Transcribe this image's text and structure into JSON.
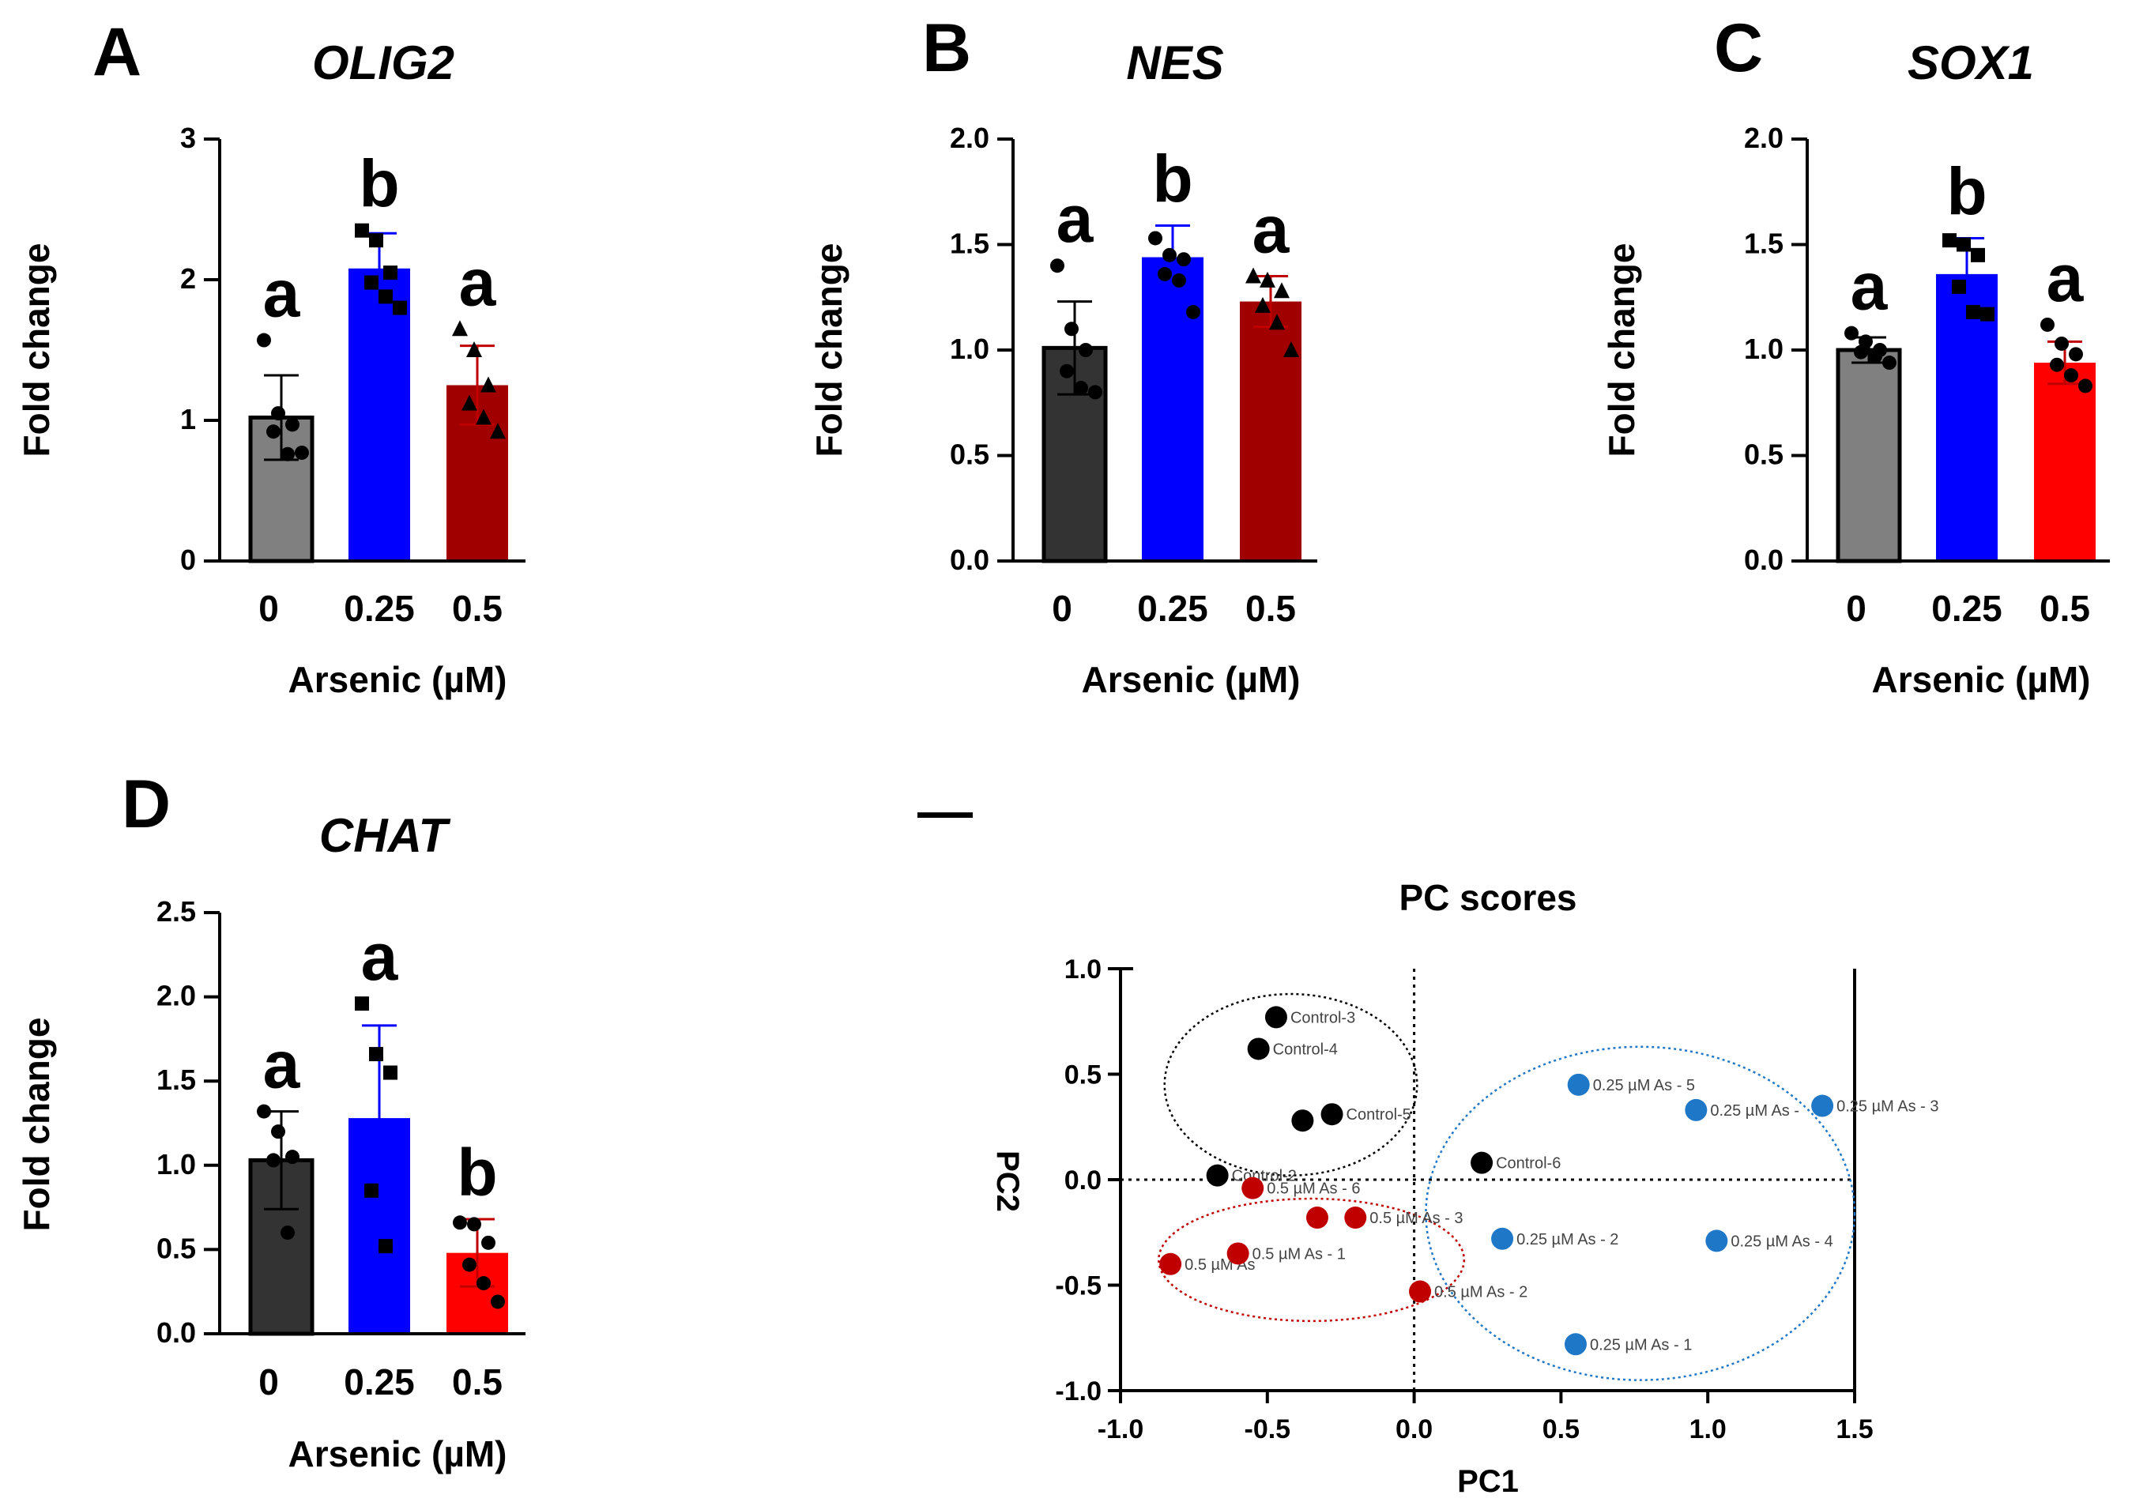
{
  "panels": [
    {
      "letter": "A",
      "chart_data": {
        "type": "bar",
        "title": "OLIG2",
        "xlabel": "Arsenic (µM)",
        "ylabel": "Fold change",
        "categories": [
          "0",
          "0.25",
          "0.5"
        ],
        "values": [
          1.02,
          2.08,
          1.25
        ],
        "errors": [
          0.3,
          0.25,
          0.28
        ],
        "sig_letters": [
          "a",
          "b",
          "a"
        ],
        "colors": [
          "#808080",
          "#0000FF",
          "#A00000"
        ],
        "markers": [
          "circle",
          "square",
          "triangle"
        ],
        "points": [
          [
            1.57,
            1.05,
            0.97,
            0.92,
            0.76,
            0.77
          ],
          [
            2.35,
            2.28,
            2.05,
            1.98,
            1.88,
            1.8
          ],
          [
            1.65,
            1.5,
            1.25,
            1.12,
            1.02,
            0.92
          ]
        ],
        "ylim": [
          0,
          3
        ],
        "yticks": [
          0,
          1,
          2,
          3
        ],
        "ytick_labels": [
          "0",
          "1",
          "2",
          "3"
        ]
      }
    },
    {
      "letter": "B",
      "chart_data": {
        "type": "bar",
        "title": "NES",
        "xlabel": "Arsenic (µM)",
        "ylabel": "Fold change",
        "categories": [
          "0",
          "0.25",
          "0.5"
        ],
        "values": [
          1.01,
          1.44,
          1.23
        ],
        "errors": [
          0.22,
          0.15,
          0.12
        ],
        "sig_letters": [
          "a",
          "b",
          "a"
        ],
        "colors": [
          "#333333",
          "#0000FF",
          "#A00000"
        ],
        "markers": [
          "circle",
          "circle",
          "triangle"
        ],
        "points": [
          [
            1.4,
            1.1,
            1.0,
            0.9,
            0.82,
            0.8
          ],
          [
            1.53,
            1.45,
            1.43,
            1.36,
            1.33,
            1.18
          ],
          [
            1.35,
            1.33,
            1.28,
            1.21,
            1.13,
            1.0
          ]
        ],
        "ylim": [
          0,
          2.0
        ],
        "yticks": [
          0,
          0.5,
          1.0,
          1.5,
          2.0
        ],
        "ytick_labels": [
          "0.0",
          "0.5",
          "1.0",
          "1.5",
          "2.0"
        ]
      }
    },
    {
      "letter": "C",
      "chart_data": {
        "type": "bar",
        "title": "SOX1",
        "xlabel": "Arsenic (µM)",
        "ylabel": "Fold change",
        "categories": [
          "0",
          "0.25",
          "0.5"
        ],
        "values": [
          1.0,
          1.36,
          0.94
        ],
        "errors": [
          0.06,
          0.17,
          0.1
        ],
        "sig_letters": [
          "a",
          "b",
          "a"
        ],
        "colors": [
          "#808080",
          "#0000FF",
          "#FF0000"
        ],
        "markers": [
          "circle",
          "square",
          "circle"
        ],
        "points": [
          [
            1.08,
            1.04,
            1.0,
            0.99,
            0.97,
            0.94
          ],
          [
            1.52,
            1.5,
            1.45,
            1.3,
            1.18,
            1.17
          ],
          [
            1.12,
            1.03,
            0.98,
            0.93,
            0.88,
            0.83
          ]
        ],
        "ylim": [
          0,
          2.0
        ],
        "yticks": [
          0,
          0.5,
          1.0,
          1.5,
          2.0
        ],
        "ytick_labels": [
          "0.0",
          "0.5",
          "1.0",
          "1.5",
          "2.0"
        ]
      }
    },
    {
      "letter": "D",
      "chart_data": {
        "type": "bar",
        "title": "CHAT",
        "xlabel": "Arsenic (µM)",
        "ylabel": "Fold change",
        "categories": [
          "0",
          "0.25",
          "0.5"
        ],
        "values": [
          1.03,
          1.28,
          0.48
        ],
        "errors": [
          0.29,
          0.55,
          0.2
        ],
        "sig_letters": [
          "a",
          "a",
          "b"
        ],
        "colors": [
          "#333333",
          "#0000FF",
          "#FF0000"
        ],
        "markers": [
          "circle",
          "square",
          "circle"
        ],
        "points": [
          [
            1.32,
            1.2,
            1.05,
            1.03,
            0.6
          ],
          [
            1.96,
            1.66,
            1.55,
            0.85,
            0.52
          ],
          [
            0.66,
            0.65,
            0.54,
            0.41,
            0.3,
            0.19
          ]
        ],
        "ylim": [
          0,
          2.5
        ],
        "yticks": [
          0,
          0.5,
          1.0,
          1.5,
          2.0,
          2.5
        ],
        "ytick_labels": [
          "0.0",
          "0.5",
          "1.0",
          "1.5",
          "2.0",
          "2.5"
        ]
      }
    }
  ],
  "pca": {
    "letter": "—",
    "chart_data": {
      "type": "scatter",
      "title": "PC scores",
      "xlabel": "PC1",
      "ylabel": "PC2",
      "xlim": [
        -1.0,
        1.5
      ],
      "ylim": [
        -1.0,
        1.0
      ],
      "xticks": [
        -1.0,
        -0.5,
        0.0,
        0.5,
        1.0,
        1.5
      ],
      "xtick_labels": [
        "-1.0",
        "-0.5",
        "0.0",
        "0.5",
        "1.0",
        "1.5"
      ],
      "yticks": [
        -1.0,
        -0.5,
        0.0,
        0.5,
        1.0
      ],
      "ytick_labels": [
        "-1.0",
        "-0.5",
        "0.0",
        "0.5",
        "1.0"
      ],
      "series": [
        {
          "name": "Control",
          "color": "#000000",
          "points": [
            {
              "x": -0.47,
              "y": 0.77,
              "label": "Control-3"
            },
            {
              "x": -0.53,
              "y": 0.62,
              "label": "Control-4"
            },
            {
              "x": -0.28,
              "y": 0.31,
              "label": "Control-5"
            },
            {
              "x": -0.38,
              "y": 0.28,
              "label": ""
            },
            {
              "x": -0.67,
              "y": 0.02,
              "label": "Control-2"
            },
            {
              "x": 0.23,
              "y": 0.08,
              "label": "Control-6"
            }
          ]
        },
        {
          "name": "0.25 µM As",
          "color": "#1F77C8",
          "points": [
            {
              "x": 0.56,
              "y": 0.45,
              "label": "0.25 µM As - 5"
            },
            {
              "x": 0.96,
              "y": 0.33,
              "label": "0.25 µM As -"
            },
            {
              "x": 1.39,
              "y": 0.35,
              "label": "0.25 µM As - 3"
            },
            {
              "x": 0.3,
              "y": -0.28,
              "label": "0.25 µM As - 2"
            },
            {
              "x": 1.03,
              "y": -0.29,
              "label": "0.25 µM As - 4"
            },
            {
              "x": 0.55,
              "y": -0.78,
              "label": "0.25 µM As - 1"
            }
          ]
        },
        {
          "name": "0.5 µM As",
          "color": "#C00000",
          "points": [
            {
              "x": -0.55,
              "y": -0.04,
              "label": "0.5 µM As - 6"
            },
            {
              "x": -0.33,
              "y": -0.18,
              "label": ""
            },
            {
              "x": -0.2,
              "y": -0.18,
              "label": "0.5 µM As - 3"
            },
            {
              "x": -0.83,
              "y": -0.4,
              "label": "0.5 µM As"
            },
            {
              "x": -0.6,
              "y": -0.35,
              "label": "0.5 µM As - 1"
            },
            {
              "x": 0.02,
              "y": -0.53,
              "label": "0.5 µM As - 2"
            }
          ]
        }
      ],
      "ellipses": [
        {
          "group": "Control",
          "color": "#000000",
          "cx": -0.42,
          "cy": 0.45,
          "rx": 0.43,
          "ry": 0.43
        },
        {
          "group": "0.25 µM As",
          "color": "#1F77C8",
          "cx": 0.77,
          "cy": -0.16,
          "rx": 0.73,
          "ry": 0.79
        },
        {
          "group": "0.5 µM As",
          "color": "#C00000",
          "cx": -0.35,
          "cy": -0.38,
          "rx": 0.52,
          "ry": 0.29
        }
      ]
    }
  }
}
